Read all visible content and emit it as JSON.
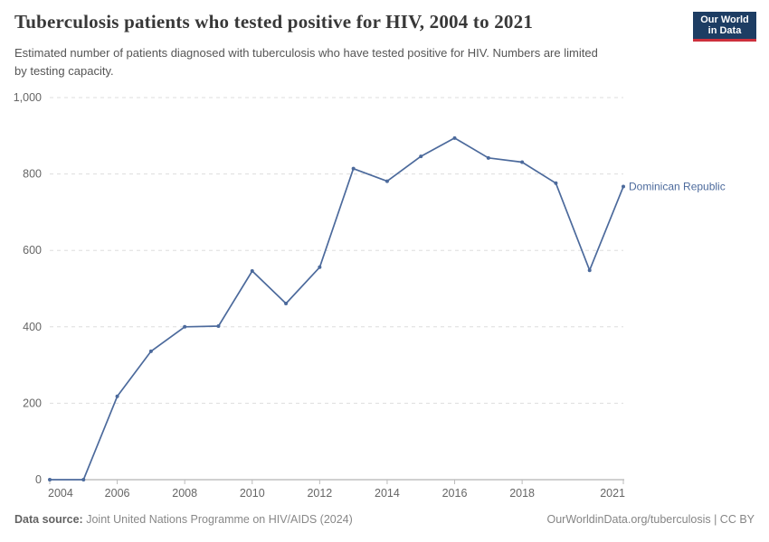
{
  "header": {
    "title": "Tuberculosis patients who tested positive for HIV, 2004 to 2021",
    "subtitle": "Estimated number of patients diagnosed with tuberculosis who have tested positive for HIV. Numbers are limited by testing capacity.",
    "logo": {
      "line1": "Our World",
      "line2": "in Data",
      "bg_color": "#1d3d63",
      "accent_color": "#cd303c"
    }
  },
  "chart_data": {
    "type": "line",
    "title": "Tuberculosis patients who tested positive for HIV, 2004 to 2021",
    "xlabel": "",
    "ylabel": "",
    "xlim": [
      2004,
      2021
    ],
    "ylim": [
      0,
      1000
    ],
    "grid": "horizontal-dashed",
    "legend_position": "end-of-line-label",
    "x_ticks": [
      2004,
      2006,
      2008,
      2010,
      2012,
      2014,
      2016,
      2018,
      2021
    ],
    "y_ticks": [
      0,
      200,
      400,
      600,
      800,
      1000
    ],
    "y_tick_labels": [
      "0",
      "200",
      "400",
      "600",
      "800",
      "1,000"
    ],
    "series": [
      {
        "name": "Dominican Republic",
        "color": "#4C6A9C",
        "x": [
          2004,
          2005,
          2006,
          2007,
          2008,
          2009,
          2010,
          2011,
          2012,
          2013,
          2014,
          2015,
          2016,
          2017,
          2018,
          2019,
          2020,
          2021
        ],
        "values": [
          0,
          0,
          218,
          336,
          400,
          402,
          546,
          461,
          556,
          814,
          781,
          846,
          894,
          842,
          831,
          776,
          548,
          767
        ]
      }
    ],
    "style": {
      "gridline_color": "#dddddd",
      "axis_color": "#a1a1a1",
      "tick_label_color": "#666666"
    }
  },
  "footer": {
    "source_label": "Data source:",
    "source_text": "Joint United Nations Programme on HIV/AIDS (2024)",
    "rights": "OurWorldinData.org/tuberculosis | CC BY"
  }
}
